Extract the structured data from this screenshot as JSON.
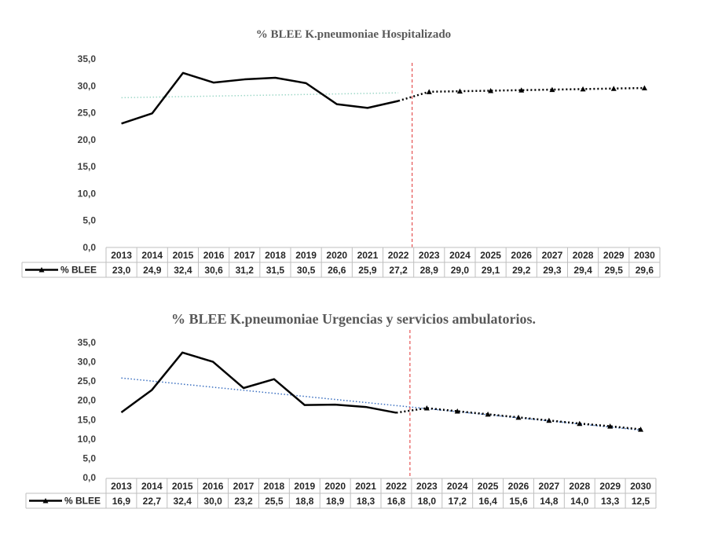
{
  "chart_data": [
    {
      "type": "line",
      "title": "% BLEE K.pneumoniae  Hospitalizado",
      "categories": [
        "2013",
        "2014",
        "2015",
        "2016",
        "2017",
        "2018",
        "2019",
        "2020",
        "2021",
        "2022",
        "2023",
        "2024",
        "2025",
        "2026",
        "2027",
        "2028",
        "2029",
        "2030"
      ],
      "yticks": [
        "0,0",
        "5,0",
        "10,0",
        "15,0",
        "20,0",
        "25,0",
        "30,0",
        "35,0"
      ],
      "ylim": [
        0,
        35
      ],
      "series": [
        {
          "name": "% BLEE",
          "values": [
            23.0,
            24.9,
            32.4,
            30.6,
            31.2,
            31.5,
            30.5,
            26.6,
            25.9,
            27.2,
            28.9,
            29.0,
            29.1,
            29.2,
            29.3,
            29.4,
            29.5,
            29.6
          ],
          "labels": [
            "23,0",
            "24,9",
            "32,4",
            "30,6",
            "31,2",
            "31,5",
            "30,5",
            "26,6",
            "25,9",
            "27,2",
            "28,9",
            "29,0",
            "29,1",
            "29,2",
            "29,3",
            "29,4",
            "29,5",
            "29,6"
          ],
          "observed_through": "2022",
          "color": "#000000"
        }
      ],
      "trendline": {
        "from": [
          "2013",
          27.8
        ],
        "to": [
          "2022",
          28.7
        ],
        "color": "#9fd8c8"
      },
      "divider_at": "2022",
      "divider_color": "#e03030",
      "grid": false
    },
    {
      "type": "line",
      "title": "% BLEE K.pneumoniae Urgencias y servicios ambulatorios.",
      "categories": [
        "2013",
        "2014",
        "2015",
        "2016",
        "2017",
        "2018",
        "2019",
        "2020",
        "2021",
        "2022",
        "2023",
        "2024",
        "2025",
        "2026",
        "2027",
        "2028",
        "2029",
        "2030"
      ],
      "yticks": [
        "0,0",
        "5,0",
        "10,0",
        "15,0",
        "20,0",
        "25,0",
        "30,0",
        "35,0"
      ],
      "ylim": [
        0,
        35
      ],
      "series": [
        {
          "name": "% BLEE",
          "values": [
            16.9,
            22.7,
            32.4,
            30.0,
            23.2,
            25.5,
            18.8,
            18.9,
            18.3,
            16.8,
            18.0,
            17.2,
            16.4,
            15.6,
            14.8,
            14.0,
            13.3,
            12.5
          ],
          "labels": [
            "16,9",
            "22,7",
            "32,4",
            "30,0",
            "23,2",
            "25,5",
            "18,8",
            "18,9",
            "18,3",
            "16,8",
            "18,0",
            "17,2",
            "16,4",
            "15,6",
            "14,8",
            "14,0",
            "13,3",
            "12,5"
          ],
          "observed_through": "2022",
          "color": "#000000"
        }
      ],
      "trendline": {
        "from": [
          "2013",
          25.8
        ],
        "to": [
          "2030",
          12.3
        ],
        "color": "#3a6fc0"
      },
      "divider_at": "2022",
      "divider_color": "#e03030",
      "grid": false
    }
  ]
}
